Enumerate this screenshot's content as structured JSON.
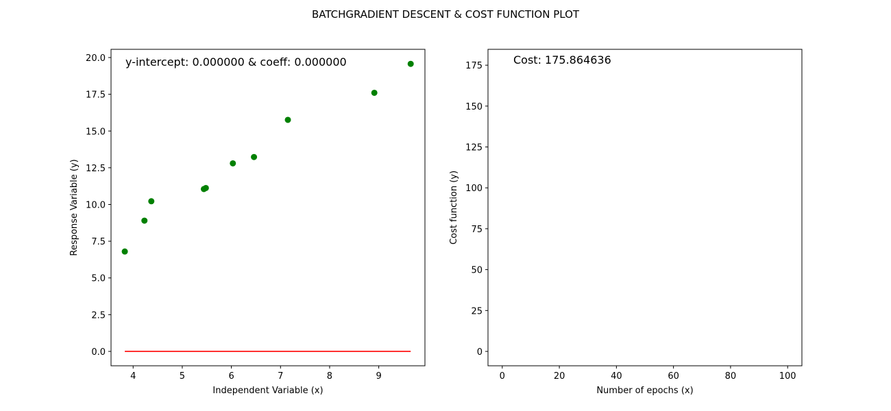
{
  "figure": {
    "title": "BATCHGRADIENT DESCENT & COST FUNCTION PLOT"
  },
  "chart_data": [
    {
      "type": "scatter",
      "title": "",
      "xlabel": "Independent Variable (x)",
      "ylabel": "Response Variable (y)",
      "xlim": [
        3.55,
        9.94
      ],
      "ylim": [
        -0.98,
        20.56
      ],
      "xticks": [
        4,
        5,
        6,
        7,
        8,
        9
      ],
      "yticks": [
        0.0,
        2.5,
        5.0,
        7.5,
        10.0,
        12.5,
        15.0,
        17.5,
        20.0
      ],
      "grid": false,
      "annotation": "y-intercept: 0.000000 & coeff: 0.000000",
      "series": [
        {
          "kind": "points",
          "color": "#008000",
          "x": [
            3.83,
            4.23,
            4.37,
            5.44,
            5.48,
            6.03,
            6.46,
            7.15,
            8.91,
            9.65
          ],
          "y": [
            6.8,
            8.9,
            10.22,
            11.05,
            11.12,
            12.8,
            13.23,
            15.76,
            17.6,
            19.57
          ]
        },
        {
          "kind": "line",
          "color": "#ff0000",
          "x": [
            3.83,
            9.65
          ],
          "y": [
            0.0,
            0.0
          ]
        }
      ]
    },
    {
      "type": "line",
      "title": "",
      "xlabel": "Number of epochs (x)",
      "ylabel": "Cost function (y)",
      "xlim": [
        -5,
        105
      ],
      "ylim": [
        -8.8,
        184.7
      ],
      "xticks": [
        0,
        20,
        40,
        60,
        80,
        100
      ],
      "yticks": [
        0,
        25,
        50,
        75,
        100,
        125,
        150,
        175
      ],
      "grid": false,
      "annotation": "Cost: 175.864636",
      "series": []
    }
  ]
}
